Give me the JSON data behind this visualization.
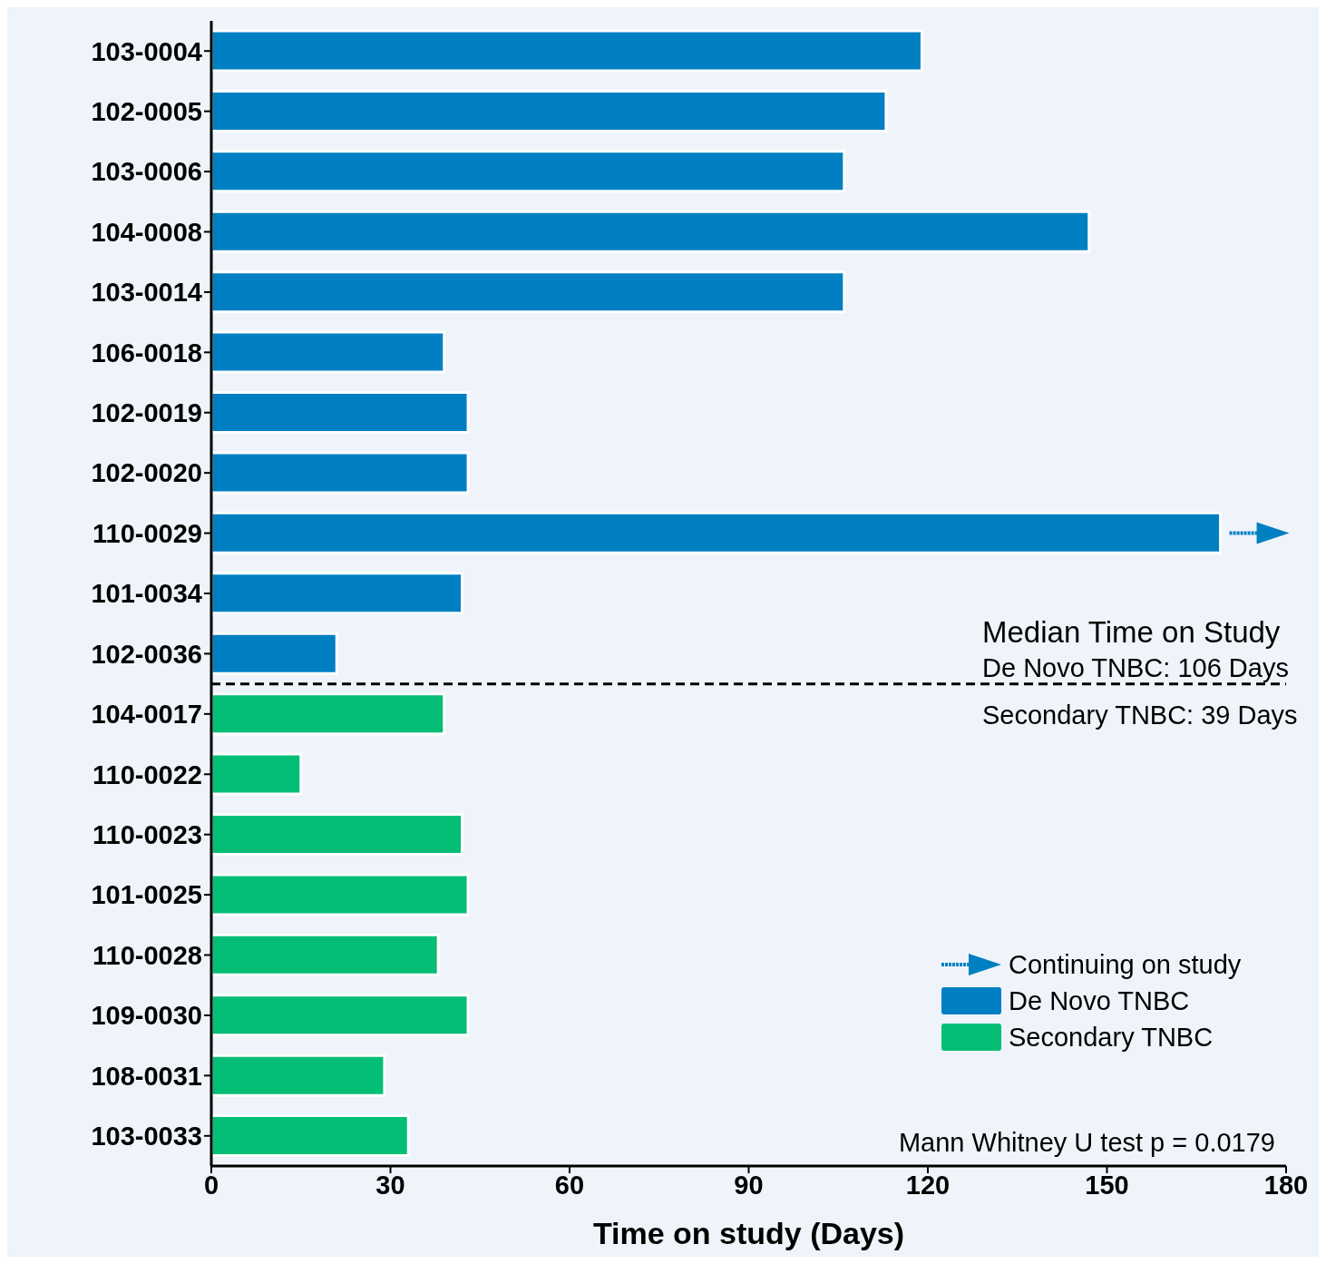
{
  "chart_data": {
    "type": "bar",
    "orientation": "horizontal",
    "xlabel": "Time on study (Days)",
    "categories": [
      "103-0004",
      "102-0005",
      "103-0006",
      "104-0008",
      "103-0014",
      "106-0018",
      "102-0019",
      "102-0020",
      "110-0029",
      "101-0034",
      "102-0036",
      "104-0017",
      "110-0022",
      "110-0023",
      "101-0025",
      "110-0028",
      "109-0030",
      "108-0031",
      "103-0033"
    ],
    "series": [
      {
        "name": "De Novo TNBC",
        "color": "#0080c2",
        "values": [
          119,
          113,
          106,
          147,
          106,
          39,
          43,
          43,
          169,
          42,
          21,
          null,
          null,
          null,
          null,
          null,
          null,
          null,
          null
        ]
      },
      {
        "name": "Secondary TNBC",
        "color": "#05be76",
        "values": [
          null,
          null,
          null,
          null,
          null,
          null,
          null,
          null,
          null,
          null,
          null,
          39,
          15,
          42,
          43,
          38,
          43,
          29,
          33
        ]
      }
    ],
    "xlim": [
      0,
      180
    ],
    "xticks": [
      0,
      30,
      60,
      90,
      120,
      150,
      180
    ],
    "ref_lines": [
      {
        "axis": "y",
        "value": "102-0036",
        "line_style": "dashed",
        "color": "#000000"
      }
    ],
    "annotations": [
      "Continuing on study",
      "Median Time on Study",
      "De Novo TNBC: 106 Days",
      "Secondary TNBC: 39 Days",
      "Mann Whitney U test p = 0.0179"
    ],
    "legend": "bottom right",
    "grid": false
  }
}
